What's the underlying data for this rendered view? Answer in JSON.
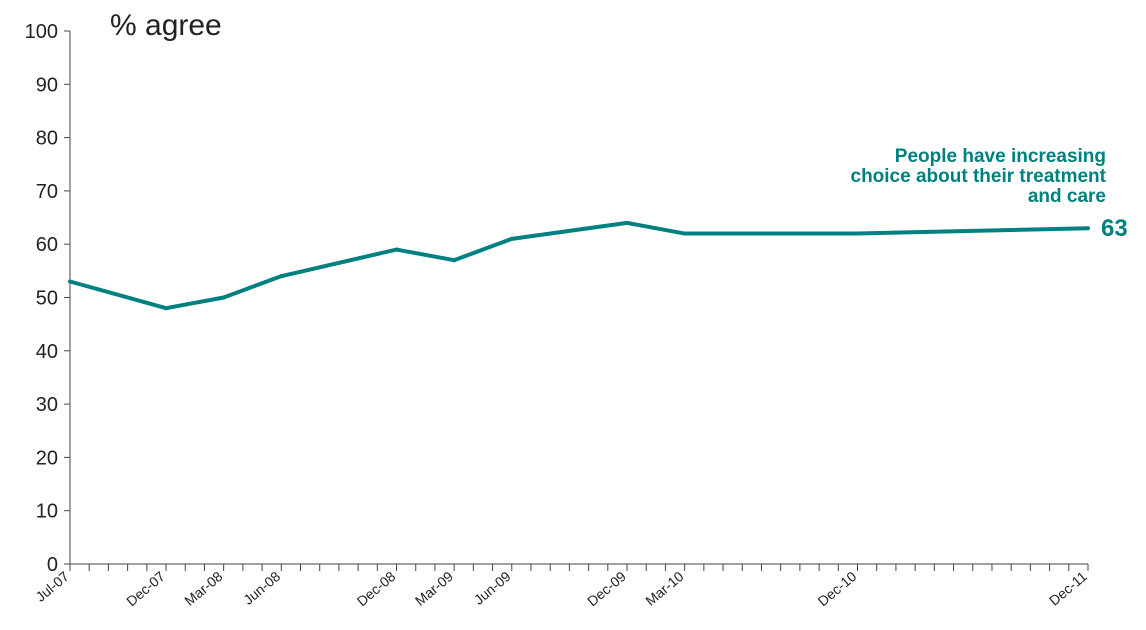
{
  "chart_data": {
    "type": "line",
    "ylabel": "% agree",
    "ylim": [
      0,
      100
    ],
    "yticks": [
      0,
      10,
      20,
      30,
      40,
      50,
      60,
      70,
      80,
      90,
      100
    ],
    "x_tick_labels": [
      "Jul-07",
      "Dec-07",
      "Mar-08",
      "Jun-08",
      "Dec-08",
      "Mar-09",
      "Jun-09",
      "Dec-09",
      "Mar-10",
      "Dec-10",
      "Dec-11"
    ],
    "x": [
      "Jul-07",
      "Dec-07",
      "Mar-08",
      "Jun-08",
      "Dec-08",
      "Mar-09",
      "Jun-09",
      "Dec-09",
      "Mar-10",
      "Dec-10",
      "Dec-11"
    ],
    "series": [
      {
        "values": [
          53,
          48,
          50,
          54,
          59,
          57,
          61,
          64,
          62,
          62,
          63
        ],
        "color": "#008080"
      }
    ],
    "annotation": {
      "lines": [
        "People have increasing",
        "choice about their treatment",
        "and care"
      ],
      "end_label": "63",
      "color": "#008080"
    },
    "grid": false
  }
}
